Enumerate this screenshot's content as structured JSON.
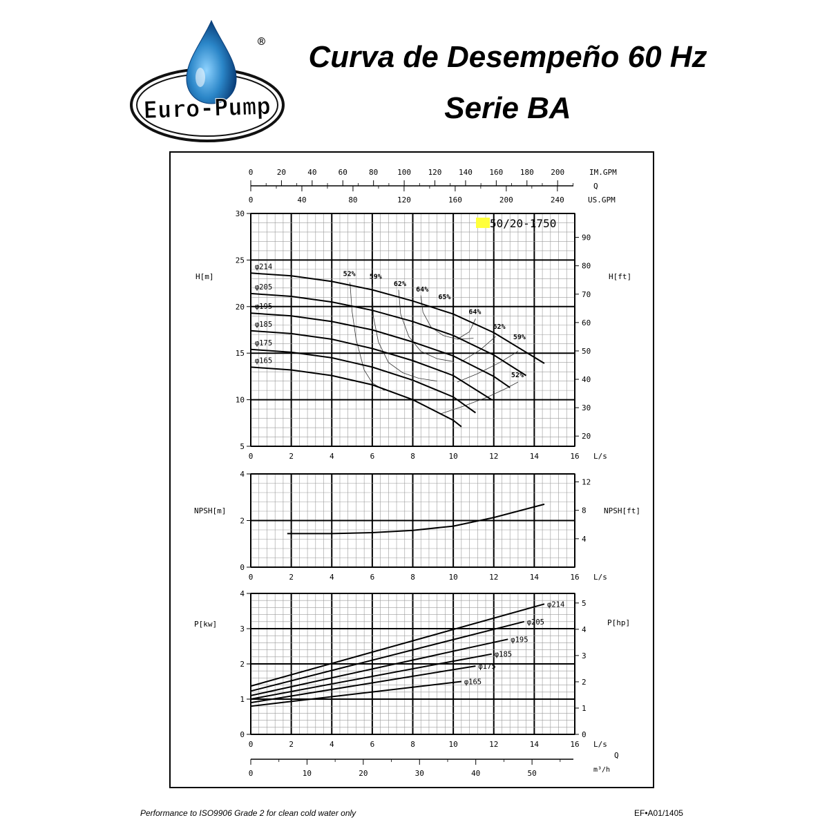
{
  "header": {
    "brand": "Euro-Pump",
    "registered": "®",
    "title_line1": "Curva de Desempeño 60 Hz",
    "title_line2": "Serie BA"
  },
  "footer": {
    "note": "Performance to ISO9906 Grade 2 for clean cold water only",
    "code": "EF•A01/1405"
  },
  "colors": {
    "logo_drop": "#2b86c8",
    "logo_ellipse": "#111111",
    "model_highlight": "#ffff3b",
    "curve": "#000000",
    "grid_major": "#000000",
    "grid_minor": "#9a9a9a"
  },
  "chart_data": {
    "type": "line",
    "model": "50/20-1750",
    "flow_axes": {
      "primary_unit": "L/s",
      "primary_ticks": [
        0,
        2,
        4,
        6,
        8,
        10,
        12,
        14,
        16
      ],
      "im_gpm_label": "IM.GPM",
      "im_gpm_ticks": [
        0,
        20,
        40,
        60,
        80,
        100,
        120,
        140,
        160,
        180,
        200
      ],
      "q_label": "Q",
      "us_gpm_label": "US.GPM",
      "us_gpm_ticks": [
        0,
        40,
        80,
        120,
        160,
        200,
        240
      ],
      "m3h_label": "m³/h",
      "m3h_ticks": [
        0,
        10,
        20,
        30,
        40,
        50
      ]
    },
    "head": {
      "ylabel_left": "H[m]",
      "ylabel_right": "H[ft]",
      "ylim": [
        5,
        30
      ],
      "left_ticks": [
        5,
        10,
        15,
        20,
        25,
        30
      ],
      "right_ticks": [
        20,
        30,
        40,
        50,
        60,
        70,
        80,
        90
      ],
      "series": [
        {
          "name": "φ214",
          "x": [
            0,
            2,
            4,
            6,
            8,
            10,
            12,
            14.5
          ],
          "y": [
            23.6,
            23.3,
            22.7,
            21.8,
            20.6,
            19.2,
            17.2,
            13.9
          ]
        },
        {
          "name": "φ205",
          "x": [
            0,
            2,
            4,
            6,
            8,
            10,
            12,
            13.6
          ],
          "y": [
            21.4,
            21.1,
            20.5,
            19.6,
            18.4,
            16.9,
            14.8,
            12.6
          ]
        },
        {
          "name": "φ195",
          "x": [
            0,
            2,
            4,
            6,
            8,
            10,
            12,
            12.8
          ],
          "y": [
            19.3,
            19.0,
            18.4,
            17.5,
            16.2,
            14.7,
            12.5,
            11.3
          ]
        },
        {
          "name": "φ185",
          "x": [
            0,
            2,
            4,
            6,
            8,
            10,
            11.9
          ],
          "y": [
            17.4,
            17.1,
            16.5,
            15.5,
            14.2,
            12.6,
            10.0
          ]
        },
        {
          "name": "φ175",
          "x": [
            0,
            2,
            4,
            6,
            8,
            10,
            11.1
          ],
          "y": [
            15.4,
            15.1,
            14.5,
            13.5,
            12.1,
            10.3,
            8.6
          ]
        },
        {
          "name": "φ165",
          "x": [
            0,
            2,
            4,
            6,
            8,
            10,
            10.4
          ],
          "y": [
            13.5,
            13.2,
            12.6,
            11.6,
            10.0,
            7.8,
            7.1
          ]
        }
      ],
      "efficiency_labels": [
        {
          "text": "52%",
          "x": 4.9,
          "y": 23.3
        },
        {
          "text": "59%",
          "x": 6.2,
          "y": 23.0
        },
        {
          "text": "62%",
          "x": 7.4,
          "y": 22.2
        },
        {
          "text": "64%",
          "x": 8.5,
          "y": 21.6
        },
        {
          "text": "65%",
          "x": 9.6,
          "y": 20.8
        },
        {
          "text": "64%",
          "x": 11.1,
          "y": 19.2
        },
        {
          "text": "62%",
          "x": 12.3,
          "y": 17.6
        },
        {
          "text": "59%",
          "x": 13.3,
          "y": 16.5
        },
        {
          "text": "52%",
          "x": 13.2,
          "y": 12.4
        }
      ],
      "efficiency_curves": [
        {
          "name": "52% left",
          "x": [
            4.9,
            5.0,
            5.2,
            5.6,
            6.0,
            6.6
          ],
          "y": [
            22.6,
            19.5,
            16.5,
            13.2,
            11.8,
            11.0
          ]
        },
        {
          "name": "59% left",
          "x": [
            6.0,
            6.05,
            6.3,
            6.8,
            7.5,
            8.3,
            9.2
          ],
          "y": [
            22.4,
            19.0,
            16.2,
            14.0,
            12.9,
            12.3,
            12.0
          ]
        },
        {
          "name": "62% left",
          "x": [
            7.3,
            7.4,
            7.8,
            8.4,
            9.2,
            10.0
          ],
          "y": [
            21.8,
            19.2,
            16.8,
            15.2,
            14.4,
            14.1
          ]
        },
        {
          "name": "64% left",
          "x": [
            8.4,
            8.5,
            8.9,
            9.5,
            10.2,
            11.0
          ],
          "y": [
            21.2,
            19.4,
            17.8,
            16.9,
            16.5,
            16.6
          ]
        },
        {
          "name": "52% right",
          "x": [
            9.4,
            10.5,
            11.7,
            12.6,
            13.2
          ],
          "y": [
            8.5,
            9.3,
            10.3,
            11.2,
            11.9
          ]
        },
        {
          "name": "59% right",
          "x": [
            10.2,
            11.2,
            12.3,
            13.2
          ],
          "y": [
            11.9,
            12.8,
            14.0,
            15.2
          ]
        },
        {
          "name": "62% right",
          "x": [
            10.4,
            11.3,
            12.1
          ],
          "y": [
            14.1,
            15.3,
            16.8
          ]
        },
        {
          "name": "64% right",
          "x": [
            10.2,
            10.8,
            11.1
          ],
          "y": [
            16.5,
            17.3,
            18.7
          ]
        }
      ]
    },
    "npsh": {
      "ylabel_left": "NPSH[m]",
      "ylabel_right": "NPSH[ft]",
      "ylim": [
        0,
        4
      ],
      "left_ticks": [
        0,
        2,
        4
      ],
      "right_ticks": [
        4,
        8,
        12
      ],
      "series": [
        {
          "name": "NPSH",
          "x": [
            1.8,
            4,
            6,
            8,
            10,
            12,
            14.5
          ],
          "y": [
            1.44,
            1.44,
            1.48,
            1.58,
            1.76,
            2.13,
            2.7
          ]
        }
      ]
    },
    "power": {
      "ylabel_left": "P[kw]",
      "ylabel_right": "P[hp]",
      "ylim": [
        0,
        4
      ],
      "left_ticks": [
        0,
        1,
        2,
        3,
        4
      ],
      "right_ticks": [
        0,
        1,
        2,
        3,
        4,
        5
      ],
      "series": [
        {
          "name": "φ214",
          "x": [
            0,
            14.5
          ],
          "y": [
            1.37,
            3.7
          ]
        },
        {
          "name": "φ205",
          "x": [
            0,
            13.5
          ],
          "y": [
            1.23,
            3.2
          ]
        },
        {
          "name": "φ195",
          "x": [
            0,
            12.7
          ],
          "y": [
            1.1,
            2.7
          ]
        },
        {
          "name": "φ185",
          "x": [
            0,
            11.9
          ],
          "y": [
            1.0,
            2.28
          ]
        },
        {
          "name": "φ175",
          "x": [
            0,
            11.1
          ],
          "y": [
            0.9,
            1.94
          ]
        },
        {
          "name": "φ165",
          "x": [
            0,
            10.4
          ],
          "y": [
            0.8,
            1.5
          ]
        }
      ]
    }
  }
}
